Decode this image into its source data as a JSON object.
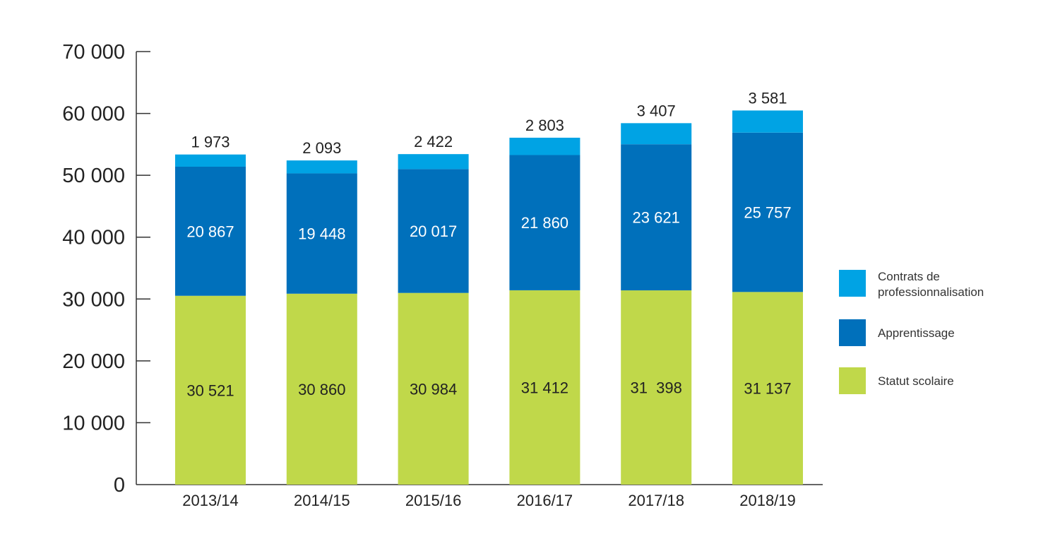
{
  "chart_data": {
    "type": "bar",
    "stacked": true,
    "categories": [
      "2013/14",
      "2014/15",
      "2015/16",
      "2016/17",
      "2017/18",
      "2018/19"
    ],
    "series": [
      {
        "name": "Statut scolaire",
        "color": "#c0d84a",
        "label_color": "#222222",
        "values": [
          30521,
          30860,
          30984,
          31412,
          31398,
          31137
        ],
        "labels": [
          "30 521",
          "30 860",
          "30 984",
          "31 412",
          "31  398",
          "31 137"
        ]
      },
      {
        "name": "Apprentissage",
        "color": "#0070bb",
        "label_color": "#ffffff",
        "values": [
          20867,
          19448,
          20017,
          21860,
          23621,
          25757
        ],
        "labels": [
          "20 867",
          "19 448",
          "20 017",
          "21 860",
          "23 621",
          "25 757"
        ]
      },
      {
        "name": "Contrats de professionnalisation",
        "legend_lines": [
          "Contrats de",
          "professionnalisation"
        ],
        "color": "#00a3e4",
        "values": [
          1973,
          2093,
          2422,
          2803,
          3407,
          3581
        ],
        "labels": [
          "1 973",
          "2 093",
          "2 422",
          "2 803",
          "3 407",
          "3 581"
        ]
      }
    ],
    "ylim": [
      0,
      70000
    ],
    "yticks": [
      0,
      10000,
      20000,
      30000,
      40000,
      50000,
      60000,
      70000
    ],
    "ytick_labels": [
      "0",
      "10 000",
      "20 000",
      "30 000",
      "40 000",
      "50 000",
      "60 000",
      "70 000"
    ],
    "legend_position": "right",
    "legend_order": [
      "Contrats de professionnalisation",
      "Apprentissage",
      "Statut scolaire"
    ],
    "grid": false,
    "title": "",
    "xlabel": "",
    "ylabel": ""
  }
}
